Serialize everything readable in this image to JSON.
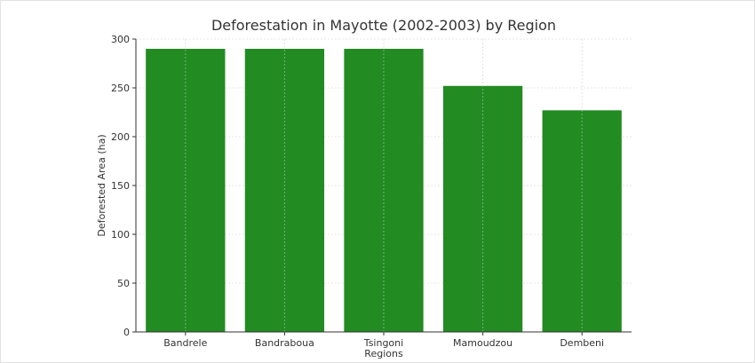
{
  "chart_data": {
    "type": "bar",
    "title": "Deforestation in Mayotte (2002-2003) by Region",
    "xlabel": "Regions",
    "ylabel": "Deforested Area (ha)",
    "categories": [
      "Bandrele",
      "Bandraboua",
      "Tsingoni",
      "Mamoudzou",
      "Dembeni"
    ],
    "values": [
      290,
      290,
      290,
      252,
      227
    ],
    "ylim": [
      0,
      300
    ],
    "yticks": [
      0,
      50,
      100,
      150,
      200,
      250,
      300
    ],
    "grid": true,
    "bar_color": "#228b22"
  }
}
